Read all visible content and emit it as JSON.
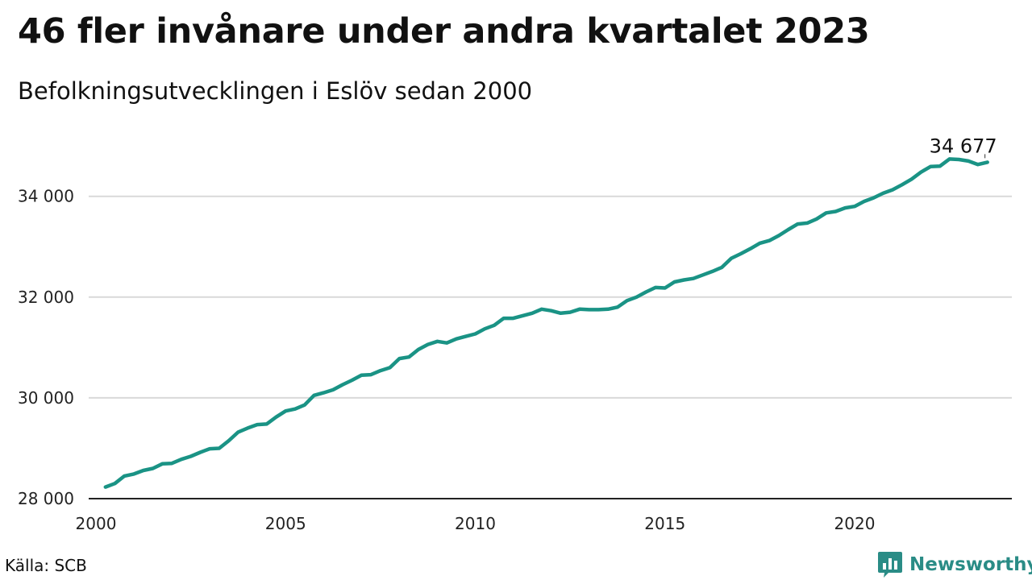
{
  "header": {
    "title": "46 fler invånare under andra kvartalet 2023",
    "subtitle": "Befolkningsutvecklingen i Eslöv sedan 2000"
  },
  "footer": {
    "source": "Källa: SCB",
    "brand": "Newsworthy",
    "brand_icon": "bar-chart-logo-icon"
  },
  "colors": {
    "line": "#1a9385",
    "grid": "#d9d9d9",
    "brand": "#2a8c86"
  },
  "chart_data": {
    "type": "line",
    "title": "46 fler invånare under andra kvartalet 2023",
    "subtitle": "Befolkningsutvecklingen i Eslöv sedan 2000",
    "xlabel": "",
    "ylabel": "",
    "x_ticks": [
      2000,
      2005,
      2010,
      2015,
      2020
    ],
    "x_tick_labels": [
      "2000",
      "2005",
      "2010",
      "2015",
      "2020"
    ],
    "y_ticks": [
      28000,
      30000,
      32000,
      34000
    ],
    "y_tick_labels": [
      "28 000",
      "30 000",
      "32 000",
      "34 000"
    ],
    "xlim": [
      2000,
      2023.5
    ],
    "ylim": [
      28000,
      35000
    ],
    "grid": "horizontal",
    "end_label": "34 677",
    "series": [
      {
        "x": [
          2000.25,
          2000.5,
          2000.75,
          2001,
          2001.25,
          2001.5,
          2001.75,
          2002,
          2002.25,
          2002.5,
          2002.75,
          2003,
          2003.25,
          2003.5,
          2003.75,
          2004,
          2004.25,
          2004.5,
          2004.75,
          2005,
          2005.25,
          2005.5,
          2005.75,
          2006,
          2006.25,
          2006.5,
          2006.75,
          2007,
          2007.25,
          2007.5,
          2007.75,
          2008,
          2008.25,
          2008.5,
          2008.75,
          2009,
          2009.25,
          2009.5,
          2009.75,
          2010,
          2010.25,
          2010.5,
          2010.75,
          2011,
          2011.25,
          2011.5,
          2011.75,
          2012,
          2012.25,
          2012.5,
          2012.75,
          2013,
          2013.25,
          2013.5,
          2013.75,
          2014,
          2014.25,
          2014.5,
          2014.75,
          2015,
          2015.25,
          2015.5,
          2015.75,
          2016,
          2016.25,
          2016.5,
          2016.75,
          2017,
          2017.25,
          2017.5,
          2017.75,
          2018,
          2018.25,
          2018.5,
          2018.75,
          2019,
          2019.25,
          2019.5,
          2019.75,
          2020,
          2020.25,
          2020.5,
          2020.75,
          2021,
          2021.25,
          2021.5,
          2021.75,
          2022,
          2022.25,
          2022.5,
          2022.75,
          2023,
          2023.25,
          2023.5
        ],
        "values": [
          28230,
          28300,
          28450,
          28490,
          28560,
          28600,
          28690,
          28700,
          28780,
          28840,
          28920,
          28990,
          29000,
          29150,
          29320,
          29400,
          29470,
          29480,
          29620,
          29740,
          29780,
          29860,
          30050,
          30100,
          30160,
          30260,
          30350,
          30450,
          30460,
          30540,
          30600,
          30780,
          30810,
          30960,
          31060,
          31120,
          31090,
          31170,
          31220,
          31270,
          31370,
          31440,
          31580,
          31580,
          31630,
          31680,
          31760,
          31730,
          31680,
          31700,
          31760,
          31750,
          31750,
          31760,
          31800,
          31930,
          32000,
          32100,
          32190,
          32180,
          32300,
          32340,
          32370,
          32440,
          32510,
          32590,
          32770,
          32860,
          32960,
          33070,
          33120,
          33220,
          33340,
          33450,
          33470,
          33550,
          33670,
          33700,
          33770,
          33800,
          33900,
          33970,
          34060,
          34130,
          34230,
          34340,
          34480,
          34590,
          34600,
          34740,
          34730,
          34700,
          34631,
          34677
        ]
      }
    ]
  }
}
